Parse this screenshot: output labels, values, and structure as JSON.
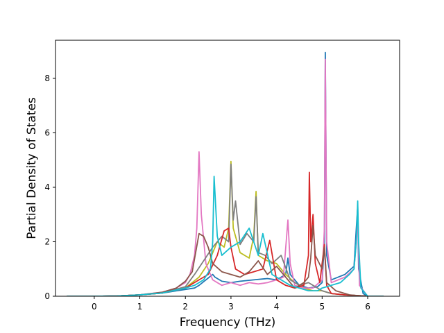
{
  "chart_data": {
    "type": "line",
    "title": "",
    "xlabel": "Frequency (THz)",
    "ylabel": "Partial Density of States",
    "xlim": [
      -0.85,
      6.7
    ],
    "ylim": [
      0,
      9.4
    ],
    "xticks": [
      0,
      1,
      2,
      3,
      4,
      5,
      6
    ],
    "yticks": [
      0,
      2,
      4,
      6,
      8
    ],
    "grid": false,
    "legend": "none",
    "series": [
      {
        "color": "#1f77b4",
        "x": [
          -0.6,
          0.0,
          0.5,
          1.0,
          1.5,
          2.0,
          2.2,
          2.3,
          2.45,
          2.6,
          2.65,
          2.8,
          3.0,
          3.2,
          3.5,
          3.8,
          4.0,
          4.2,
          4.25,
          4.3,
          4.5,
          4.7,
          4.9,
          5.0,
          5.05,
          5.07,
          5.1,
          5.2,
          5.5,
          5.7,
          5.75,
          5.78,
          5.8,
          5.9,
          6.0,
          6.35
        ],
        "y": [
          0,
          0,
          0.01,
          0.05,
          0.12,
          0.25,
          0.3,
          0.4,
          0.6,
          0.8,
          0.7,
          0.55,
          0.5,
          0.55,
          0.6,
          0.65,
          0.6,
          0.8,
          1.4,
          0.8,
          0.4,
          0.3,
          0.35,
          0.5,
          2.0,
          8.95,
          1.5,
          0.6,
          0.8,
          1.1,
          2.5,
          3.3,
          1.0,
          0.1,
          0,
          0
        ]
      },
      {
        "color": "#bcbd22",
        "x": [
          -0.6,
          0.0,
          0.5,
          1.0,
          1.5,
          2.0,
          2.3,
          2.5,
          2.7,
          2.85,
          2.95,
          3.0,
          3.05,
          3.2,
          3.4,
          3.5,
          3.55,
          3.6,
          3.8,
          4.0,
          4.2,
          4.4,
          4.6,
          4.8,
          5.0,
          5.2,
          5.5,
          5.8,
          6.0,
          6.35
        ],
        "y": [
          0,
          0,
          0.01,
          0.05,
          0.12,
          0.3,
          0.7,
          1.2,
          2.0,
          1.8,
          2.5,
          4.95,
          2.5,
          1.6,
          1.4,
          2.2,
          3.85,
          1.5,
          1.3,
          1.2,
          0.8,
          0.5,
          0.3,
          0.2,
          0.2,
          0.1,
          0.05,
          0.02,
          0,
          0
        ]
      },
      {
        "color": "#e377c2",
        "x": [
          -0.6,
          0.0,
          0.5,
          1.0,
          1.5,
          1.8,
          2.0,
          2.1,
          2.2,
          2.25,
          2.3,
          2.35,
          2.45,
          2.6,
          2.8,
          3.0,
          3.2,
          3.4,
          3.6,
          3.8,
          4.0,
          4.15,
          4.25,
          4.3,
          4.4,
          4.6,
          4.8,
          5.0,
          5.05,
          5.07,
          5.1,
          5.2,
          5.5,
          5.7,
          5.75,
          5.78,
          5.82,
          6.0,
          6.35
        ],
        "y": [
          0,
          0,
          0.01,
          0.05,
          0.15,
          0.3,
          0.5,
          0.8,
          1.5,
          2.5,
          5.3,
          3.0,
          1.2,
          0.6,
          0.4,
          0.5,
          0.4,
          0.5,
          0.45,
          0.5,
          0.6,
          0.7,
          2.8,
          1.2,
          0.4,
          0.3,
          0.3,
          0.6,
          2.5,
          8.7,
          2.0,
          0.5,
          0.7,
          1.0,
          2.0,
          2.9,
          0.4,
          0,
          0
        ]
      },
      {
        "color": "#7f7f7f",
        "x": [
          -0.6,
          0.0,
          0.5,
          1.0,
          1.5,
          2.0,
          2.2,
          2.4,
          2.6,
          2.8,
          2.95,
          3.0,
          3.05,
          3.1,
          3.2,
          3.35,
          3.5,
          3.55,
          3.6,
          3.75,
          3.9,
          4.1,
          4.3,
          4.5,
          4.7,
          4.8,
          5.0,
          5.2,
          5.5,
          5.8,
          6.0,
          6.35
        ],
        "y": [
          0,
          0,
          0.01,
          0.05,
          0.12,
          0.35,
          0.8,
          1.3,
          1.8,
          2.2,
          2.0,
          4.85,
          2.8,
          3.5,
          1.9,
          2.3,
          2.0,
          3.65,
          1.6,
          1.5,
          1.2,
          1.5,
          0.6,
          0.4,
          0.5,
          0.4,
          0.2,
          0.1,
          0.05,
          0.02,
          0,
          0
        ]
      },
      {
        "color": "#d62728",
        "x": [
          -0.6,
          0.0,
          0.5,
          1.0,
          1.5,
          2.0,
          2.3,
          2.5,
          2.7,
          2.85,
          2.95,
          3.0,
          3.1,
          3.3,
          3.5,
          3.7,
          3.85,
          4.0,
          4.2,
          4.4,
          4.6,
          4.7,
          4.72,
          4.75,
          4.8,
          4.85,
          4.95,
          5.05,
          5.1,
          5.2,
          5.5,
          5.8,
          6.0,
          6.35
        ],
        "y": [
          0,
          0,
          0.01,
          0.05,
          0.12,
          0.3,
          0.6,
          0.8,
          1.5,
          2.4,
          2.5,
          1.8,
          1.0,
          0.8,
          0.9,
          1.0,
          2.05,
          0.6,
          0.4,
          0.3,
          0.4,
          1.5,
          4.55,
          2.0,
          3.0,
          1.2,
          0.5,
          1.9,
          0.4,
          0.1,
          0.05,
          0.02,
          0,
          0
        ]
      },
      {
        "color": "#8c564b",
        "x": [
          -0.6,
          0.0,
          0.5,
          1.0,
          1.5,
          1.8,
          2.0,
          2.15,
          2.3,
          2.4,
          2.5,
          2.6,
          2.8,
          3.0,
          3.2,
          3.4,
          3.6,
          3.8,
          4.0,
          4.2,
          4.4,
          4.6,
          4.7,
          4.75,
          4.8,
          4.85,
          5.0,
          5.05,
          5.1,
          5.3,
          5.6,
          5.8,
          6.0,
          6.35
        ],
        "y": [
          0,
          0,
          0.01,
          0.05,
          0.15,
          0.3,
          0.55,
          0.9,
          2.3,
          2.2,
          1.8,
          1.2,
          0.9,
          0.8,
          0.7,
          0.9,
          1.3,
          0.8,
          1.1,
          0.7,
          0.3,
          0.5,
          0.7,
          1.4,
          2.6,
          1.5,
          1.0,
          1.8,
          0.5,
          0.2,
          0.05,
          0.02,
          0,
          0
        ]
      },
      {
        "color": "#17becf",
        "x": [
          -0.6,
          0.0,
          0.5,
          1.0,
          1.5,
          2.0,
          2.2,
          2.4,
          2.55,
          2.6,
          2.63,
          2.7,
          2.8,
          3.0,
          3.2,
          3.4,
          3.6,
          3.7,
          3.9,
          4.1,
          4.3,
          4.5,
          4.7,
          4.9,
          5.0,
          5.2,
          5.4,
          5.6,
          5.7,
          5.75,
          5.78,
          5.8,
          5.85,
          6.0,
          6.35
        ],
        "y": [
          0,
          0,
          0.01,
          0.05,
          0.12,
          0.3,
          0.4,
          0.6,
          1.0,
          2.0,
          4.4,
          2.2,
          1.5,
          1.8,
          2.0,
          2.5,
          1.5,
          2.3,
          0.8,
          0.6,
          0.4,
          0.3,
          0.2,
          0.2,
          0.3,
          0.4,
          0.5,
          0.8,
          1.0,
          2.0,
          3.5,
          2.0,
          0.3,
          0,
          0
        ]
      }
    ]
  }
}
